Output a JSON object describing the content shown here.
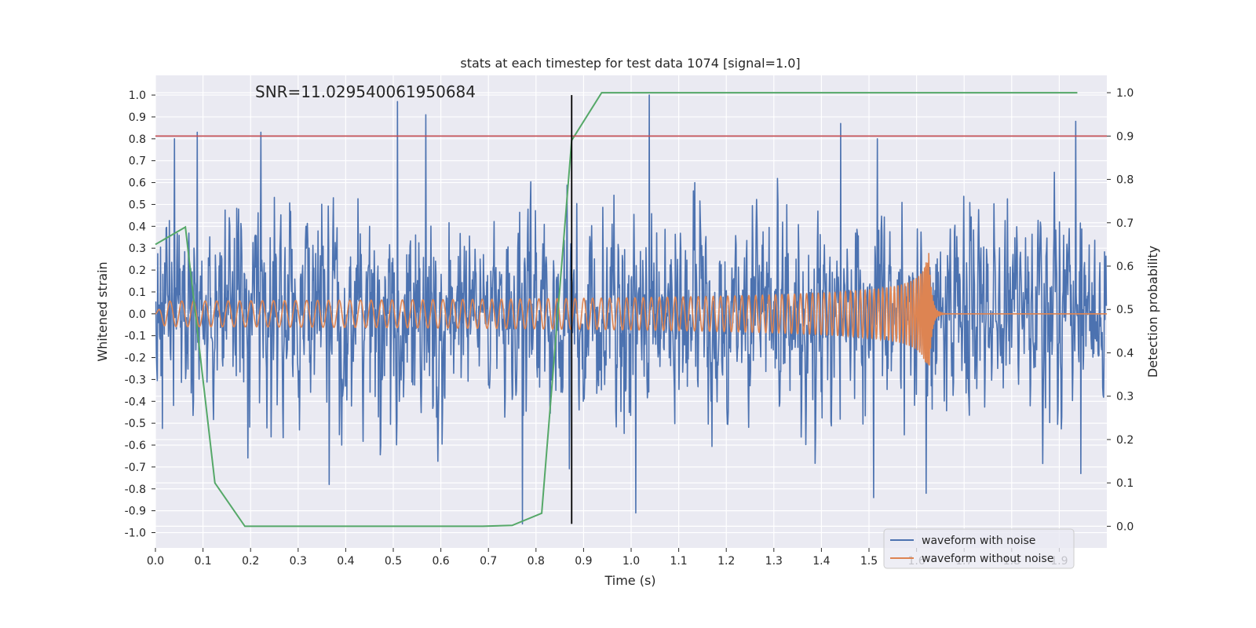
{
  "chart_data": {
    "type": "line",
    "title": "stats at each timestep for test data 1074 [signal=1.0]",
    "xlabel": "Time (s)",
    "ylabel_left": "Whitened strain",
    "ylabel_right": "Detection probability",
    "xlim": [
      0.0,
      2.0
    ],
    "ylim_left": [
      -1.07,
      1.09
    ],
    "ylim_right": [
      -0.05,
      1.04
    ],
    "x_ticks": [
      0.0,
      0.1,
      0.2,
      0.3,
      0.4,
      0.5,
      0.6,
      0.7,
      0.8,
      0.9,
      1.0,
      1.1,
      1.2,
      1.3,
      1.4,
      1.5,
      1.6,
      1.7,
      1.8,
      1.9
    ],
    "x_tick_labels": [
      "0.0",
      "0.1",
      "0.2",
      "0.3",
      "0.4",
      "0.5",
      "0.6",
      "0.7",
      "0.8",
      "0.9",
      "1.0",
      "1.1",
      "1.2",
      "1.3",
      "1.4",
      "1.5",
      "1.6",
      "1.7",
      "1.8",
      "1.9"
    ],
    "y_left_ticks": [
      1.0,
      0.9,
      0.8,
      0.7,
      0.6,
      0.5,
      0.4,
      0.3,
      0.2,
      0.1,
      0.0,
      -0.1,
      -0.2,
      -0.3,
      -0.4,
      -0.5,
      -0.6,
      -0.7,
      -0.8,
      -0.9,
      -1.0
    ],
    "y_left_tick_labels": [
      "1.0",
      "0.9",
      "0.8",
      "0.7",
      "0.6",
      "0.5",
      "0.4",
      "0.3",
      "0.2",
      "0.1",
      "0.0",
      "-0.1",
      "-0.2",
      "-0.3",
      "-0.4",
      "-0.5",
      "-0.6",
      "-0.7",
      "-0.8",
      "-0.9",
      "-1.0"
    ],
    "y_right_ticks": [
      1.0,
      0.9,
      0.8,
      0.7,
      0.6,
      0.5,
      0.4,
      0.3,
      0.2,
      0.1,
      0.0
    ],
    "y_right_tick_labels": [
      "1.0",
      "0.9",
      "0.8",
      "0.7",
      "0.6",
      "0.5",
      "0.4",
      "0.3",
      "0.2",
      "0.1",
      "0.0"
    ],
    "annotation": "SNR=11.029540061950684",
    "annotation_at": {
      "x": 0.2,
      "y": 1.0
    },
    "threshold": {
      "value": 0.9,
      "axis": "right",
      "color": "#c44e52"
    },
    "detection_time": {
      "x": 0.875,
      "ymin": -0.96,
      "ymax": 1.0,
      "color": "#000000"
    },
    "series": [
      {
        "name": "waveform with noise",
        "axis": "left",
        "color": "#4c72b0",
        "note": "noisy whitened strain sampled densely over 0-2 s, values mostly within -0.9..1.0",
        "seed": 1074,
        "sample_rate": 1024,
        "noise_std": 0.27,
        "peaks": [
          {
            "x": 0.04,
            "y": 0.8
          },
          {
            "x": 0.088,
            "y": 0.83
          },
          {
            "x": 0.222,
            "y": 0.83
          },
          {
            "x": 0.509,
            "y": 0.97
          },
          {
            "x": 0.568,
            "y": 0.91
          },
          {
            "x": 1.038,
            "y": 1.0
          },
          {
            "x": 1.44,
            "y": 0.87
          },
          {
            "x": 1.518,
            "y": 0.8
          },
          {
            "x": 1.935,
            "y": 0.88
          },
          {
            "x": 0.365,
            "y": -0.78
          },
          {
            "x": 0.771,
            "y": -0.96
          },
          {
            "x": 1.01,
            "y": -0.91
          },
          {
            "x": 1.51,
            "y": -0.84
          },
          {
            "x": 1.62,
            "y": -0.82
          },
          {
            "x": 1.945,
            "y": -0.73
          }
        ]
      },
      {
        "name": "waveform without noise",
        "axis": "left",
        "color": "#dd8452",
        "note": "inspiral chirp: amplitude ~0.06 growing to ~0.33 at merger t=1.625 s, then ringdown to 0",
        "merger_time": 1.625,
        "start_frequency": 40,
        "start_amplitude": 0.058,
        "peak_amplitude": 0.33
      },
      {
        "name": "Detection probability",
        "axis": "right",
        "color": "#55a868",
        "x": [
          0.0,
          0.063,
          0.125,
          0.188,
          0.25,
          0.313,
          0.375,
          0.438,
          0.5,
          0.563,
          0.625,
          0.688,
          0.75,
          0.812,
          0.875,
          0.938,
          1.0,
          1.063,
          1.125,
          1.188,
          1.25,
          1.313,
          1.375,
          1.438,
          1.5,
          1.563,
          1.625,
          1.688,
          1.75,
          1.813,
          1.875,
          1.938
        ],
        "values": [
          0.65,
          0.69,
          0.1,
          0.0,
          0.0,
          0.0,
          0.0,
          0.0,
          0.0,
          0.0,
          0.0,
          0.0,
          0.002,
          0.03,
          0.89,
          1.0,
          1.0,
          1.0,
          1.0,
          1.0,
          1.0,
          1.0,
          1.0,
          1.0,
          1.0,
          1.0,
          1.0,
          1.0,
          1.0,
          1.0,
          1.0,
          1.0
        ]
      }
    ],
    "legend": {
      "location": "lower-right",
      "entries": [
        {
          "label": "waveform with noise",
          "color": "#4c72b0"
        },
        {
          "label": "waveform without noise",
          "color": "#dd8452"
        }
      ]
    },
    "style": {
      "background": "#eaeaf2",
      "grid": true,
      "grid_color": "#ffffff"
    }
  }
}
